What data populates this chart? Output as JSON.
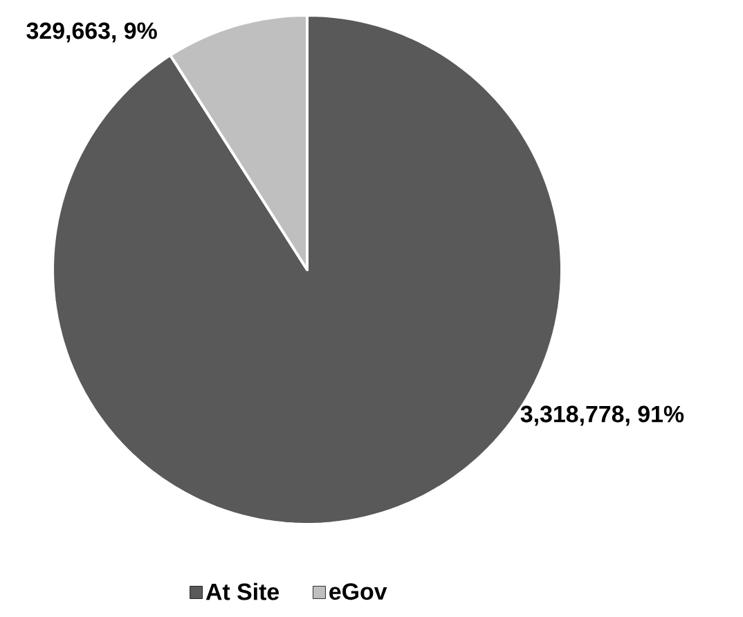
{
  "chart_data": {
    "type": "pie",
    "categories": [
      "At Site",
      "eGov"
    ],
    "values": [
      3318778,
      329663
    ],
    "colors": [
      "#595959",
      "#bfbfbf"
    ],
    "value_labels": [
      "3,318,778, 91%",
      "329,663, 9%"
    ],
    "legend": "bottom"
  }
}
